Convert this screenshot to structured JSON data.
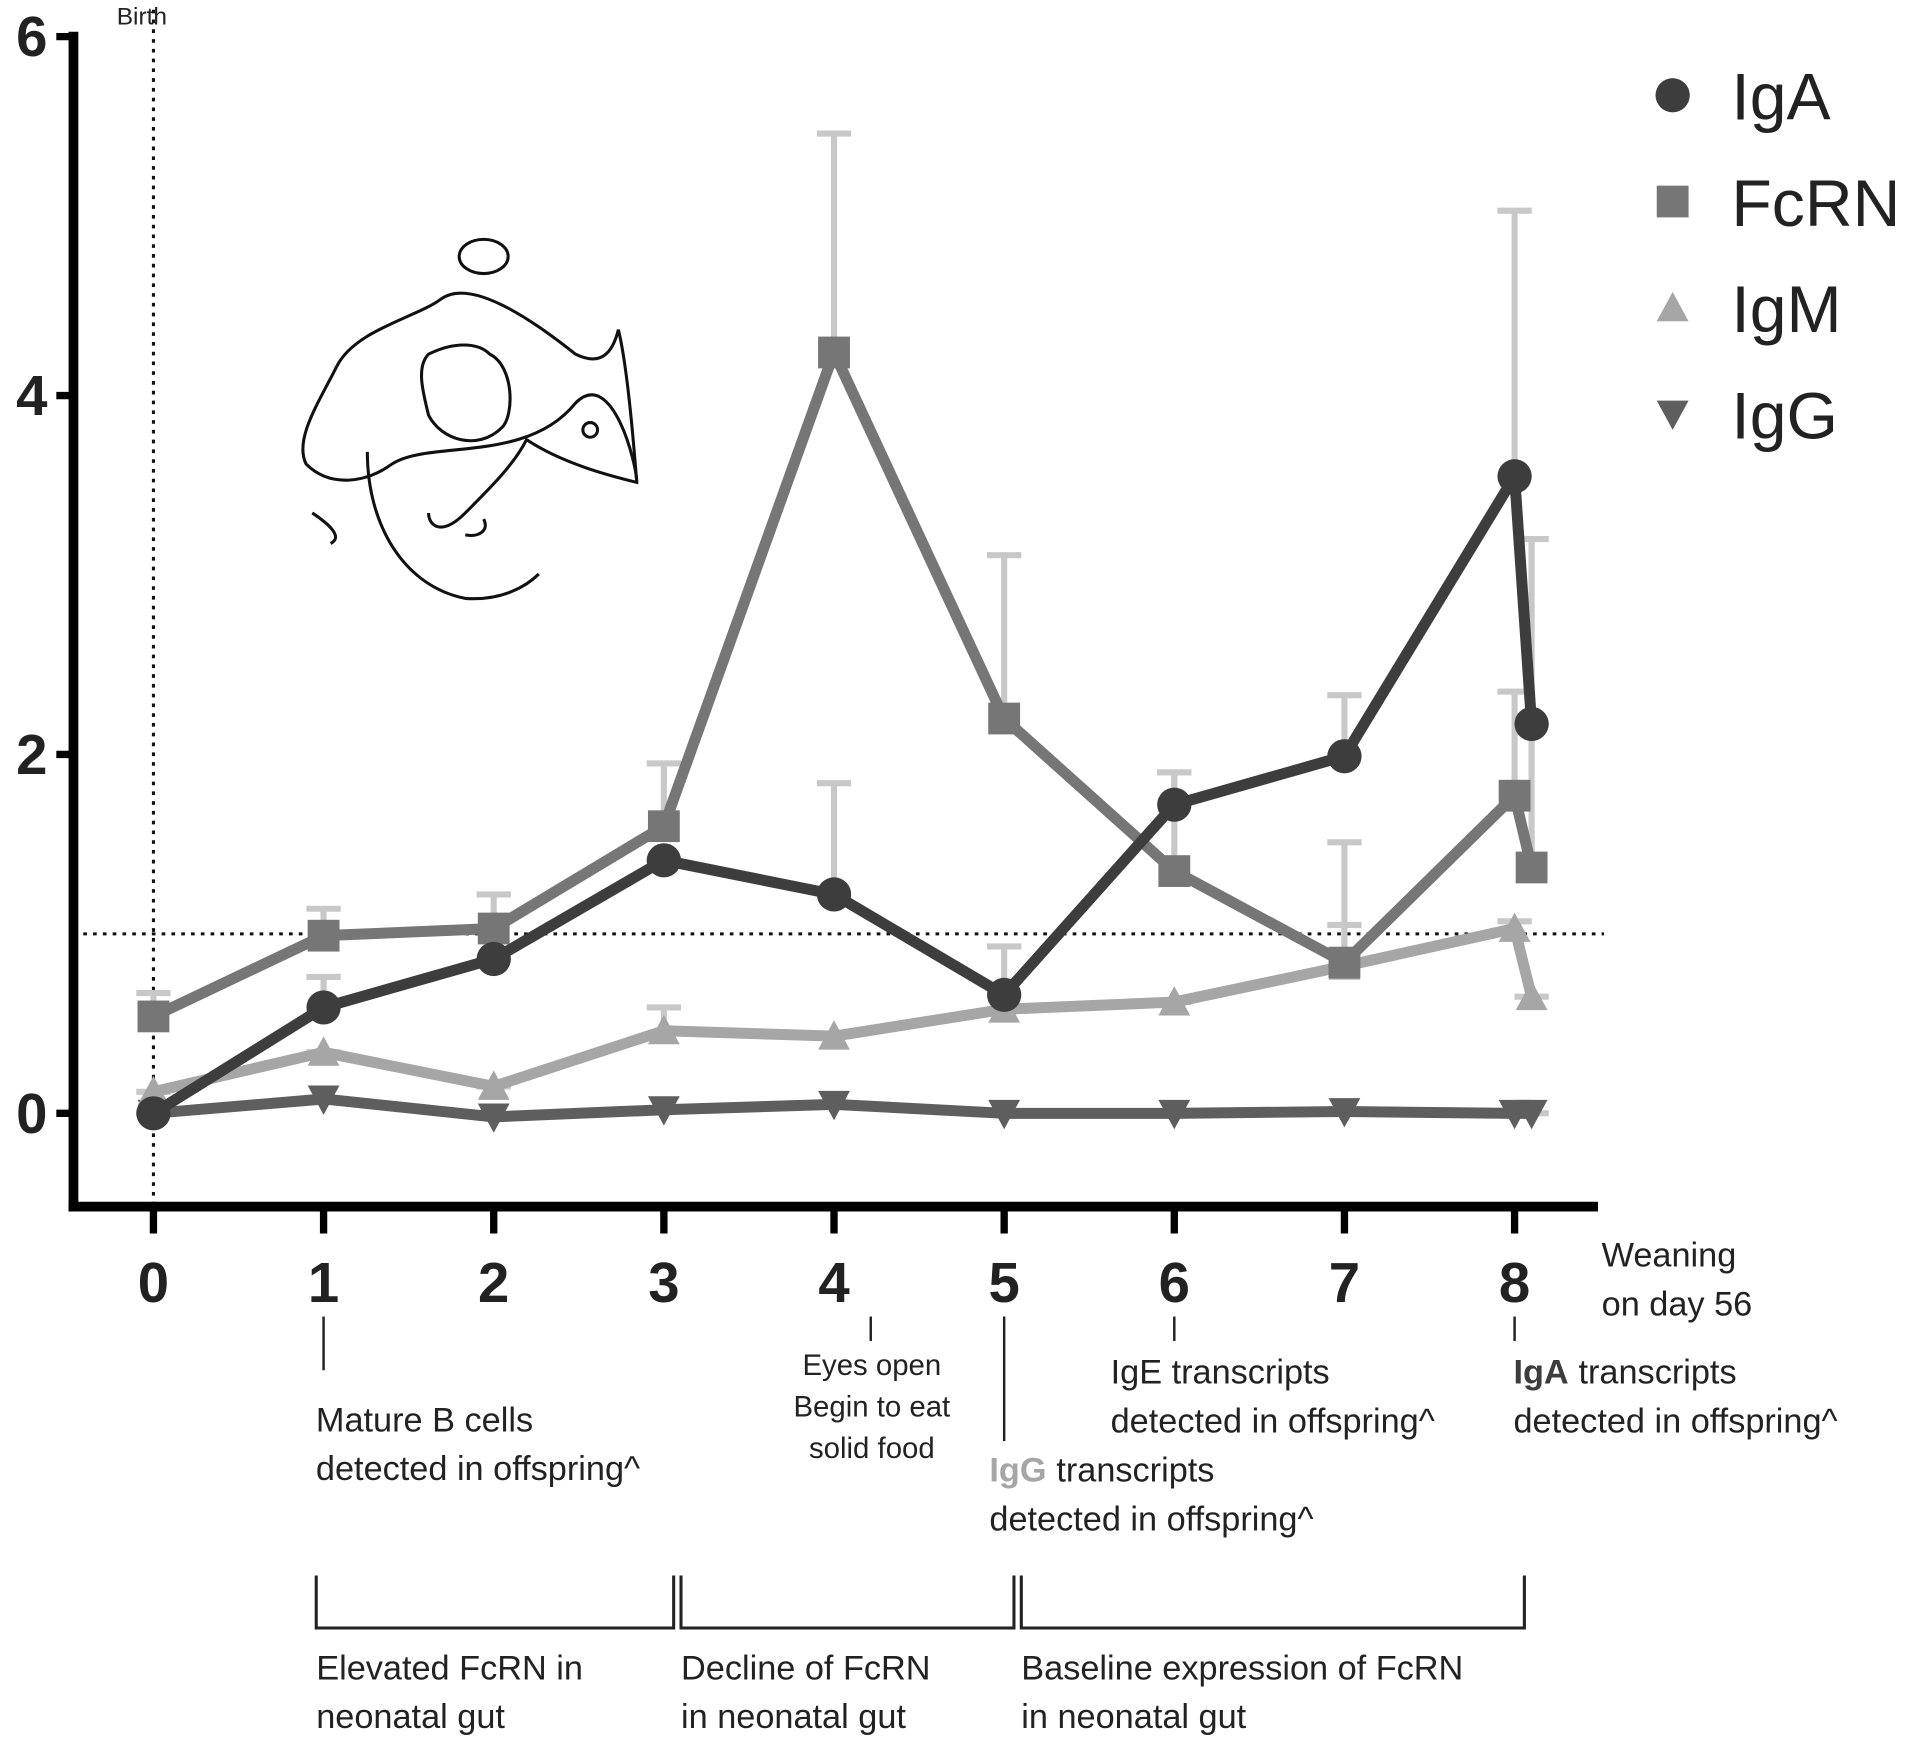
{
  "chart_data": {
    "type": "line",
    "x": [
      0,
      1,
      2,
      3,
      4,
      5,
      6,
      7,
      8,
      8.1
    ],
    "xlim": [
      -0.47,
      8.49
    ],
    "xticks": [
      0,
      1,
      2,
      3,
      4,
      5,
      6,
      7,
      8
    ],
    "ylim": [
      -0.52,
      6
    ],
    "yticks": [
      0,
      2,
      4,
      6
    ],
    "error_color": "#c8c8c8",
    "series": [
      {
        "name": "IgA",
        "color": "#3d3d3d",
        "marker": "circle",
        "values": [
          0,
          0.59,
          0.86,
          1.41,
          1.22,
          0.66,
          1.72,
          1.99,
          3.55,
          2.17
        ],
        "errors": [
          0,
          0.17,
          0,
          0,
          0.62,
          0.27,
          0.18,
          0.34,
          1.48,
          0
        ]
      },
      {
        "name": "FcRN",
        "color": "#767676",
        "marker": "square",
        "values": [
          0.54,
          0.99,
          1.03,
          1.6,
          4.24,
          2.2,
          1.35,
          0.84,
          1.77,
          1.37
        ],
        "errors": [
          0.13,
          0.15,
          0.19,
          0.35,
          1.22,
          0.91,
          0.55,
          0.67,
          0.58,
          1.83
        ]
      },
      {
        "name": "IgM",
        "color": "#a6a6a6",
        "marker": "triangle-up",
        "values": [
          0.12,
          0.34,
          0.15,
          0.46,
          0.43,
          0.58,
          0.62,
          0.82,
          1.03,
          0.65
        ],
        "errors": [
          0,
          0,
          0,
          0.13,
          0,
          0,
          0,
          0.23,
          0.04,
          0
        ]
      },
      {
        "name": "IgG",
        "color": "#5e5e5e",
        "marker": "triangle-down",
        "values": [
          0,
          0.08,
          -0.02,
          0.02,
          0.05,
          0,
          0,
          0.01,
          0,
          0
        ],
        "errors": [
          0,
          0,
          0,
          0,
          0,
          0,
          0,
          0,
          0,
          0
        ]
      }
    ],
    "reference_lines": {
      "y": 1,
      "x": 0,
      "x_label": "Birth"
    },
    "x_note": [
      "Weaning",
      "on day 56"
    ],
    "annotations": [
      {
        "x": 1,
        "lines": [
          "Mature B cells",
          "detected in offspring^"
        ]
      },
      {
        "x": 4,
        "lines": [
          "Eyes open",
          "Begin to eat",
          "solid food"
        ]
      },
      {
        "x": 5,
        "lead": "IgG",
        "lead_color": "#a6a6a6",
        "lines": [
          "transcripts",
          "detected in offspring^"
        ]
      },
      {
        "x": 6,
        "lines": [
          "IgE transcripts",
          "detected in offspring^"
        ]
      },
      {
        "x": 8,
        "lead": "IgA",
        "lead_color": "#3d3d3d",
        "lines": [
          "transcripts",
          "detected in offspring^"
        ]
      }
    ],
    "periods": [
      {
        "from": 1,
        "to": 3,
        "lines": [
          "Elevated FcRN in",
          "neonatal gut"
        ]
      },
      {
        "from": 3,
        "to": 5,
        "lines": [
          "Decline of FcRN",
          "in neonatal gut"
        ]
      },
      {
        "from": 5,
        "to": 8,
        "lines": [
          "Baseline expression of FcRN",
          "in neonatal gut"
        ]
      }
    ]
  }
}
